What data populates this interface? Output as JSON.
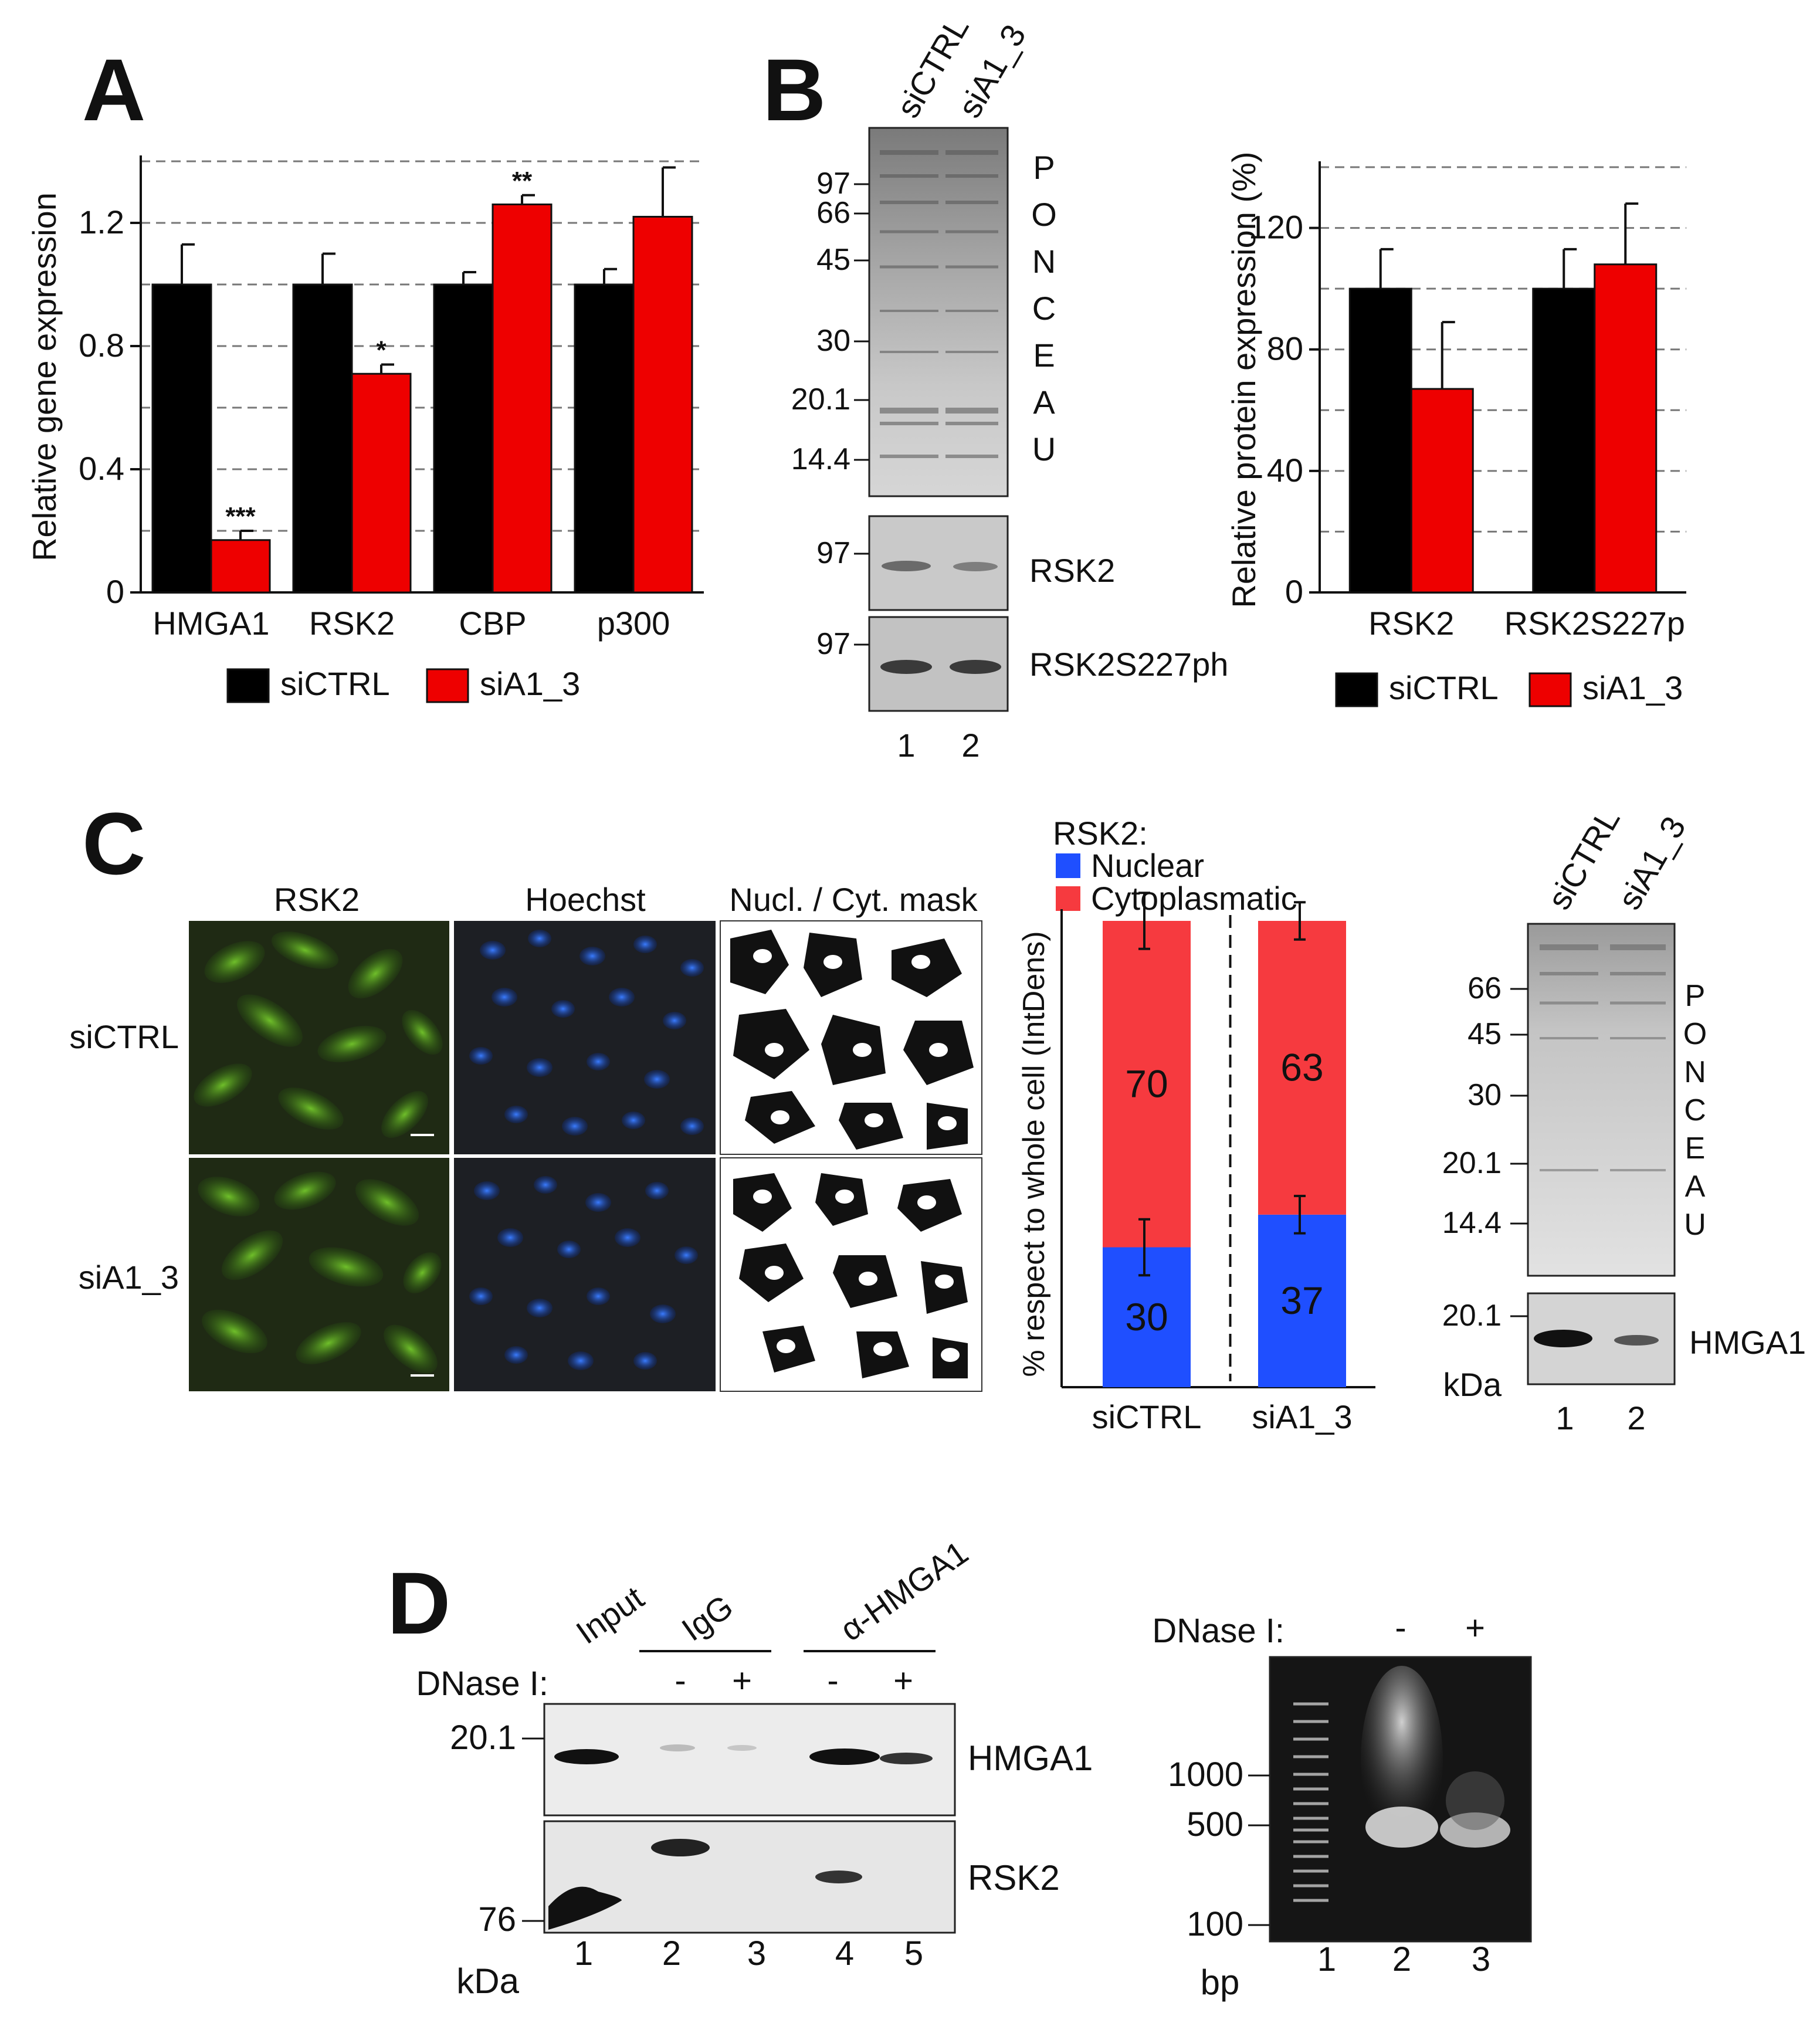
{
  "colors": {
    "black": "#000000",
    "red": "#ee0000",
    "nuclear": "#1f4fff",
    "cytoplasmatic": "#f63a3f",
    "green_cells": "#2f6a12",
    "blue_cells": "#1a4aa8",
    "dark_panel": "#1d1f24",
    "gel_bg": "#151515"
  },
  "panelA": {
    "letter": "A",
    "chart_data": {
      "type": "bar",
      "categories": [
        "HMGA1",
        "RSK2",
        "CBP",
        "p300"
      ],
      "series": [
        {
          "name": "siCTRL",
          "values": [
            1.0,
            1.0,
            1.0,
            1.0
          ],
          "errors": [
            0.13,
            0.1,
            0.04,
            0.05
          ],
          "sig": [
            "",
            "",
            "",
            ""
          ]
        },
        {
          "name": "siA1_3",
          "values": [
            0.17,
            0.71,
            1.26,
            1.22
          ],
          "errors": [
            0.03,
            0.03,
            0.03,
            0.16
          ],
          "sig": [
            "***",
            "*",
            "**",
            ""
          ]
        }
      ],
      "ylabel": "Relative gene expression",
      "ylim": [
        0,
        1.4
      ],
      "yticks": [
        "0",
        "0.4",
        "0.8",
        "1.2"
      ],
      "ytick_values": [
        0,
        0.4,
        0.8,
        1.2
      ],
      "gridlines": [
        0.2,
        0.4,
        0.6,
        0.8,
        1.0,
        1.2,
        1.4
      ],
      "legend": [
        "siCTRL",
        "siA1_3"
      ]
    }
  },
  "panelB": {
    "letter": "B",
    "blot": {
      "lanes": [
        "siCTRL",
        "siA1_3"
      ],
      "markers": [
        "97",
        "66",
        "45",
        "30",
        "20.1",
        "14.4"
      ],
      "ponceau": [
        "P",
        "O",
        "N",
        "C",
        "E",
        "A",
        "U"
      ],
      "rsk2_marker": "97",
      "rsk2_label": "RSK2",
      "ph_marker": "97",
      "ph_label": "RSK2S227ph",
      "lane_numbers": [
        "1",
        "2"
      ]
    },
    "chart_data": {
      "type": "bar",
      "categories": [
        "RSK2",
        "RSK2S227p"
      ],
      "series": [
        {
          "name": "siCTRL",
          "values": [
            100,
            100
          ],
          "errors": [
            13,
            13
          ]
        },
        {
          "name": "siA1_3",
          "values": [
            67,
            108
          ],
          "errors": [
            22,
            20
          ]
        }
      ],
      "ylabel": "Relative protein expression (%)",
      "ylim": [
        0,
        140
      ],
      "yticks": [
        "0",
        "40",
        "80",
        "120"
      ],
      "ytick_values": [
        0,
        40,
        80,
        120
      ],
      "gridlines": [
        20,
        40,
        60,
        80,
        100,
        120,
        140
      ],
      "legend": [
        "siCTRL",
        "siA1_3"
      ]
    }
  },
  "panelC": {
    "letter": "C",
    "columns": [
      "RSK2",
      "Hoechst",
      "Nucl. / Cyt. mask"
    ],
    "rows": [
      "siCTRL",
      "siA1_3"
    ],
    "legend_title": "RSK2:",
    "chart_data": {
      "type": "bar",
      "stacked": true,
      "categories": [
        "siCTRL",
        "siA1_3"
      ],
      "series": [
        {
          "name": "Nuclear",
          "values": [
            30,
            37
          ],
          "errors": [
            6,
            4
          ]
        },
        {
          "name": "Cytoplasmatic",
          "values": [
            70,
            63
          ],
          "errors": [
            6,
            4
          ]
        }
      ],
      "ylabel": "% respect to whole cell (IntDens)",
      "ylim": [
        0,
        100
      ]
    },
    "blot": {
      "lanes": [
        "siCTRL",
        "siA1_3"
      ],
      "markers": [
        "66",
        "45",
        "30",
        "20.1",
        "14.4"
      ],
      "ponceau": [
        "P",
        "O",
        "N",
        "C",
        "E",
        "A",
        "U"
      ],
      "hmga1_marker": "20.1",
      "hmga1_label": "HMGA1",
      "unit": "kDa",
      "lane_numbers": [
        "1",
        "2"
      ]
    }
  },
  "panelD": {
    "letter": "D",
    "headers": {
      "input": "Input",
      "igg": "IgG",
      "ahmga1": "α-HMGA1"
    },
    "dnase_label": "DNase I:",
    "dnase_signs": [
      "-",
      "+",
      "-",
      "+"
    ],
    "hmga1_marker": "20.1",
    "hmga1_label": "HMGA1",
    "rsk2_marker": "76",
    "rsk2_label": "RSK2",
    "unit": "kDa",
    "lane_numbers": [
      "1",
      "2",
      "3",
      "4",
      "5"
    ],
    "gel": {
      "dnase_label": "DNase I:",
      "signs": [
        "-",
        "+"
      ],
      "markers": [
        "1000",
        "500",
        "100"
      ],
      "unit": "bp",
      "lane_numbers": [
        "1",
        "2",
        "3"
      ]
    }
  }
}
